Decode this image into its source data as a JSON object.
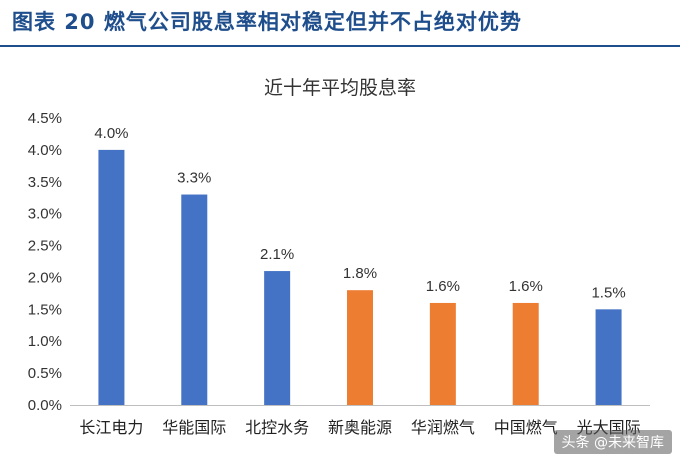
{
  "header": {
    "title": "图表 20  燃气公司股息率相对稳定但并不占绝对优势"
  },
  "colors": {
    "blue": "#4472c4",
    "orange": "#ed7d31",
    "header": "#1f4e8c"
  },
  "chart_data": {
    "type": "bar",
    "title": "近十年平均股息率",
    "categories": [
      "长江电力",
      "华能国际",
      "北控水务",
      "新奥能源",
      "华润燃气",
      "中国燃气",
      "光大国际"
    ],
    "values": [
      4.0,
      3.3,
      2.1,
      1.8,
      1.6,
      1.6,
      1.5
    ],
    "value_labels": [
      "4.0%",
      "3.3%",
      "2.1%",
      "1.8%",
      "1.6%",
      "1.6%",
      "1.5%"
    ],
    "bar_colors": [
      "#4472c4",
      "#4472c4",
      "#4472c4",
      "#ed7d31",
      "#ed7d31",
      "#ed7d31",
      "#4472c4"
    ],
    "yticks": [
      0,
      0.5,
      1.0,
      1.5,
      2.0,
      2.5,
      3.0,
      3.5,
      4.0,
      4.5
    ],
    "ytick_labels": [
      "0.0%",
      "0.5%",
      "1.0%",
      "1.5%",
      "2.0%",
      "2.5%",
      "3.0%",
      "3.5%",
      "4.0%",
      "4.5%"
    ],
    "ylim": [
      0,
      4.5
    ],
    "grid": false,
    "legend": "none"
  },
  "watermark": {
    "text": "头条 @未来智库"
  }
}
